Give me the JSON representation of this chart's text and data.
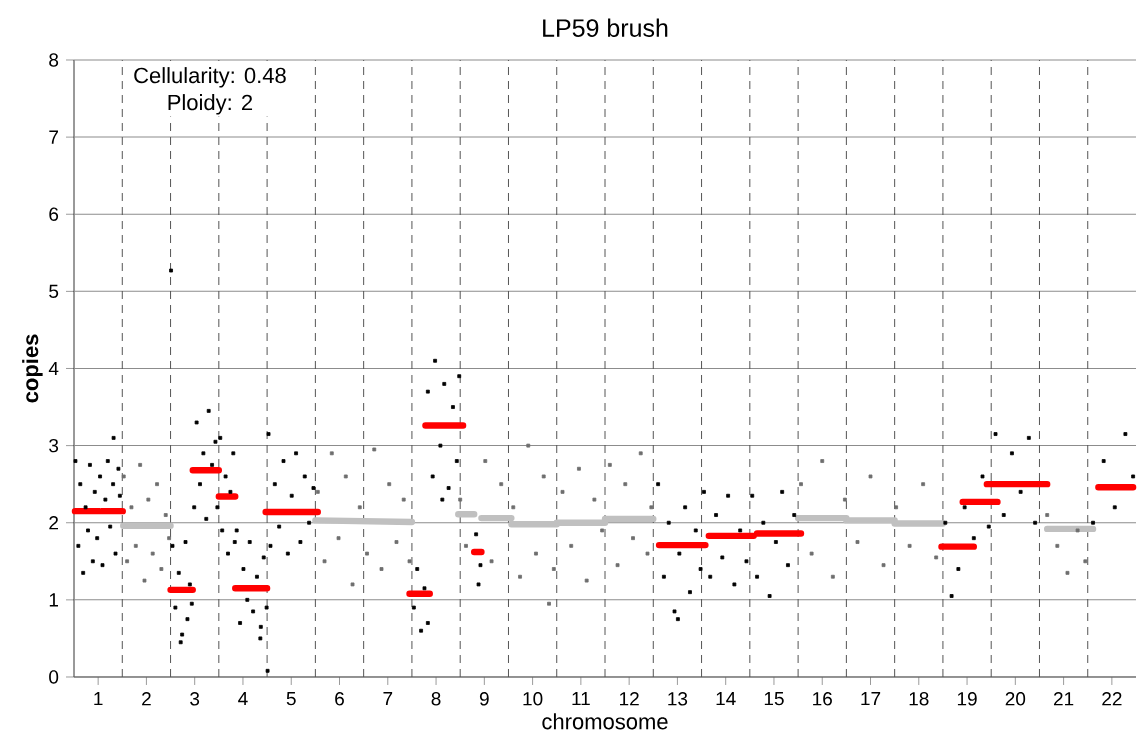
{
  "chart_data": {
    "type": "scatter",
    "title": "LP59 brush",
    "xlabel": "chromosome",
    "ylabel": "copies",
    "annotations": [
      "Cellularity: 0.48",
      "Ploidy: 2"
    ],
    "xlim": [
      0.5,
      22.5
    ],
    "xticks": [
      1,
      2,
      3,
      4,
      5,
      6,
      7,
      8,
      9,
      10,
      11,
      12,
      13,
      14,
      15,
      16,
      17,
      18,
      19,
      20,
      21,
      22
    ],
    "ylim": [
      0,
      8
    ],
    "yticks": [
      0,
      1,
      2,
      3,
      4,
      5,
      6,
      7,
      8
    ],
    "grid": "y",
    "marker": "square",
    "ref_lines": [
      {
        "axis": "x",
        "value": 1.5,
        "color": "#555555",
        "line_style": "dashed"
      },
      {
        "axis": "x",
        "value": 2.5,
        "color": "#555555",
        "line_style": "dashed"
      },
      {
        "axis": "x",
        "value": 3.5,
        "color": "#555555",
        "line_style": "dashed"
      },
      {
        "axis": "x",
        "value": 4.5,
        "color": "#555555",
        "line_style": "dashed"
      },
      {
        "axis": "x",
        "value": 5.5,
        "color": "#555555",
        "line_style": "dashed"
      },
      {
        "axis": "x",
        "value": 6.5,
        "color": "#555555",
        "line_style": "dashed"
      },
      {
        "axis": "x",
        "value": 7.5,
        "color": "#555555",
        "line_style": "dashed"
      },
      {
        "axis": "x",
        "value": 8.5,
        "color": "#555555",
        "line_style": "dashed"
      },
      {
        "axis": "x",
        "value": 9.5,
        "color": "#555555",
        "line_style": "dashed"
      },
      {
        "axis": "x",
        "value": 10.5,
        "color": "#555555",
        "line_style": "dashed"
      },
      {
        "axis": "x",
        "value": 11.5,
        "color": "#555555",
        "line_style": "dashed"
      },
      {
        "axis": "x",
        "value": 12.5,
        "color": "#555555",
        "line_style": "dashed"
      },
      {
        "axis": "x",
        "value": 13.5,
        "color": "#555555",
        "line_style": "dashed"
      },
      {
        "axis": "x",
        "value": 14.5,
        "color": "#555555",
        "line_style": "dashed"
      },
      {
        "axis": "x",
        "value": 15.5,
        "color": "#555555",
        "line_style": "dashed"
      },
      {
        "axis": "x",
        "value": 16.5,
        "color": "#555555",
        "line_style": "dashed"
      },
      {
        "axis": "x",
        "value": 17.5,
        "color": "#555555",
        "line_style": "dashed"
      },
      {
        "axis": "x",
        "value": 18.5,
        "color": "#555555",
        "line_style": "dashed"
      },
      {
        "axis": "x",
        "value": 19.5,
        "color": "#555555",
        "line_style": "dashed"
      },
      {
        "axis": "x",
        "value": 20.5,
        "color": "#555555",
        "line_style": "dashed"
      },
      {
        "axis": "x",
        "value": 21.5,
        "color": "#555555",
        "line_style": "dashed"
      }
    ],
    "series": [
      {
        "color": "#6e6e6e",
        "x": [
          1.53,
          1.6,
          1.69,
          1.78,
          1.87,
          1.96,
          2.04,
          2.13,
          2.22,
          2.31,
          2.4,
          2.47,
          5.55,
          5.69,
          5.84,
          5.98,
          6.13,
          6.27,
          6.42,
          6.57,
          6.72,
          6.87,
          7.03,
          7.18,
          7.33,
          7.45,
          8.5,
          8.62,
          9.02,
          9.15,
          9.35,
          9.6,
          9.74,
          9.91,
          10.07,
          10.23,
          10.34,
          10.44,
          10.62,
          10.8,
          10.96,
          11.12,
          11.28,
          11.44,
          11.6,
          11.76,
          11.92,
          12.08,
          12.24,
          12.38,
          12.46,
          15.56,
          15.78,
          16.0,
          16.22,
          16.47,
          16.73,
          17.0,
          17.27,
          17.53,
          17.81,
          18.09,
          18.36,
          20.66,
          20.87,
          21.08,
          21.29,
          21.45
        ],
        "values": [
          2.6,
          1.5,
          2.2,
          1.7,
          2.75,
          1.25,
          2.3,
          1.6,
          2.5,
          1.4,
          2.1,
          1.8,
          2.4,
          1.5,
          2.9,
          1.8,
          2.6,
          1.2,
          2.2,
          1.6,
          2.95,
          1.4,
          2.5,
          1.75,
          2.3,
          1.5,
          2.3,
          1.7,
          2.8,
          1.5,
          2.5,
          2.2,
          1.3,
          3.0,
          1.6,
          2.6,
          0.95,
          1.4,
          2.4,
          1.7,
          2.7,
          1.25,
          2.3,
          1.9,
          2.75,
          1.45,
          2.5,
          1.8,
          2.9,
          1.6,
          2.2,
          2.5,
          1.6,
          2.8,
          1.3,
          2.3,
          1.75,
          2.6,
          1.45,
          2.2,
          1.7,
          2.5,
          1.55,
          2.1,
          1.7,
          1.35,
          1.9,
          1.5
        ]
      },
      {
        "color": "#000000",
        "x": [
          0.53,
          0.59,
          0.63,
          0.69,
          0.74,
          0.79,
          0.83,
          0.89,
          0.93,
          0.98,
          1.04,
          1.09,
          1.15,
          1.2,
          1.25,
          1.31,
          1.32,
          1.36,
          1.42,
          1.45,
          2.54,
          2.6,
          2.67,
          2.74,
          2.81,
          2.85,
          2.9,
          2.94,
          2.71,
          2.51,
          2.99,
          3.04,
          3.11,
          3.18,
          3.24,
          3.29,
          3.36,
          3.43,
          3.47,
          3.53,
          3.57,
          3.64,
          3.69,
          3.74,
          3.8,
          3.83,
          3.87,
          3.94,
          4.01,
          4.09,
          4.14,
          4.21,
          4.29,
          4.37,
          4.43,
          4.49,
          4.51,
          4.36,
          4.53,
          4.57,
          4.66,
          4.75,
          4.84,
          4.93,
          5.01,
          5.1,
          5.19,
          5.28,
          5.37,
          5.46,
          7.54,
          7.61,
          7.69,
          7.76,
          7.83,
          7.83,
          7.93,
          7.98,
          8.09,
          8.17,
          8.26,
          8.35,
          8.43,
          8.48,
          8.13,
          8.83,
          8.88,
          8.92,
          12.6,
          12.72,
          12.82,
          12.94,
          13.04,
          13.16,
          13.26,
          13.38,
          13.48,
          13.01,
          13.55,
          13.68,
          13.8,
          13.93,
          14.05,
          14.18,
          14.3,
          14.43,
          14.55,
          14.65,
          14.78,
          14.91,
          15.04,
          15.17,
          15.29,
          15.42,
          18.55,
          18.68,
          18.82,
          18.95,
          19.14,
          19.32,
          19.45,
          19.59,
          19.76,
          19.93,
          20.11,
          20.28,
          20.41,
          21.61,
          21.83,
          22.06,
          22.28,
          22.44
        ],
        "values": [
          2.8,
          1.7,
          2.5,
          1.35,
          2.2,
          1.9,
          2.75,
          1.5,
          2.4,
          1.8,
          2.6,
          1.45,
          2.3,
          2.8,
          1.95,
          2.5,
          3.1,
          1.6,
          2.7,
          2.35,
          1.7,
          0.9,
          1.35,
          0.55,
          1.75,
          0.75,
          1.2,
          0.95,
          0.45,
          5.27,
          2.2,
          3.3,
          2.5,
          2.9,
          2.05,
          3.45,
          2.75,
          3.05,
          2.2,
          3.1,
          1.9,
          2.6,
          1.6,
          2.4,
          2.9,
          1.75,
          1.9,
          0.7,
          1.4,
          1.0,
          1.75,
          0.85,
          1.3,
          0.65,
          1.55,
          0.9,
          0.08,
          0.5,
          3.15,
          1.7,
          2.5,
          1.95,
          2.8,
          1.6,
          2.35,
          2.9,
          1.75,
          2.6,
          2.0,
          2.45,
          0.9,
          1.4,
          0.6,
          1.15,
          0.7,
          3.7,
          2.6,
          4.1,
          3.0,
          3.8,
          2.45,
          3.5,
          2.8,
          3.9,
          2.3,
          1.85,
          1.2,
          1.45,
          2.5,
          1.3,
          2.0,
          0.85,
          1.6,
          2.2,
          1.1,
          1.9,
          1.4,
          0.75,
          2.4,
          1.3,
          2.1,
          1.55,
          2.35,
          1.2,
          1.9,
          1.5,
          2.35,
          1.3,
          2.0,
          1.05,
          1.75,
          2.4,
          1.45,
          2.1,
          2.0,
          1.05,
          1.4,
          2.2,
          1.8,
          2.6,
          1.95,
          3.15,
          2.1,
          2.9,
          2.4,
          3.1,
          2.0,
          2.0,
          2.8,
          2.2,
          3.15,
          2.6
        ]
      },
      {
        "type": "line",
        "marker": "none",
        "color": "#c0c0c0",
        "x": [
          1.52,
          2.5,
          null,
          5.5,
          7.5,
          null,
          8.46,
          8.79,
          null,
          8.94,
          9.56,
          null,
          9.56,
          10.5,
          null,
          10.5,
          11.5,
          null,
          11.5,
          12.5,
          null,
          15.5,
          16.5,
          null,
          16.5,
          17.5,
          null,
          17.5,
          18.5,
          null,
          20.66,
          21.61
        ],
        "values": [
          1.96,
          1.96,
          null,
          2.03,
          2.01,
          null,
          2.11,
          2.11,
          null,
          2.06,
          2.06,
          null,
          1.98,
          1.98,
          null,
          2.0,
          2.0,
          null,
          2.05,
          2.05,
          null,
          2.06,
          2.06,
          null,
          2.03,
          2.03,
          null,
          1.99,
          1.99,
          null,
          1.92,
          1.92
        ]
      },
      {
        "type": "line",
        "marker": "none",
        "color": "#ff0000",
        "x": [
          0.52,
          1.03,
          null,
          1.07,
          1.51,
          null,
          2.5,
          2.96,
          null,
          2.96,
          3.5,
          null,
          3.5,
          3.84,
          null,
          3.84,
          4.5,
          null,
          4.47,
          5.55,
          null,
          7.45,
          7.87,
          null,
          7.78,
          8.56,
          null,
          8.79,
          8.94,
          null,
          12.62,
          13.58,
          null,
          13.65,
          14.58,
          null,
          14.65,
          15.56,
          null,
          18.47,
          19.14,
          null,
          18.91,
          19.63,
          null,
          19.41,
          20.66,
          null,
          21.72,
          22.44
        ],
        "values": [
          2.15,
          2.15,
          null,
          2.15,
          2.15,
          null,
          1.13,
          1.13,
          null,
          2.68,
          2.68,
          null,
          2.34,
          2.34,
          null,
          1.15,
          1.15,
          null,
          2.14,
          2.14,
          null,
          1.08,
          1.08,
          null,
          3.26,
          3.26,
          null,
          1.62,
          1.62,
          null,
          1.71,
          1.71,
          null,
          1.83,
          1.83,
          null,
          1.86,
          1.86,
          null,
          1.69,
          1.69,
          null,
          2.27,
          2.27,
          null,
          2.5,
          2.5,
          null,
          2.46,
          2.46
        ]
      }
    ]
  }
}
